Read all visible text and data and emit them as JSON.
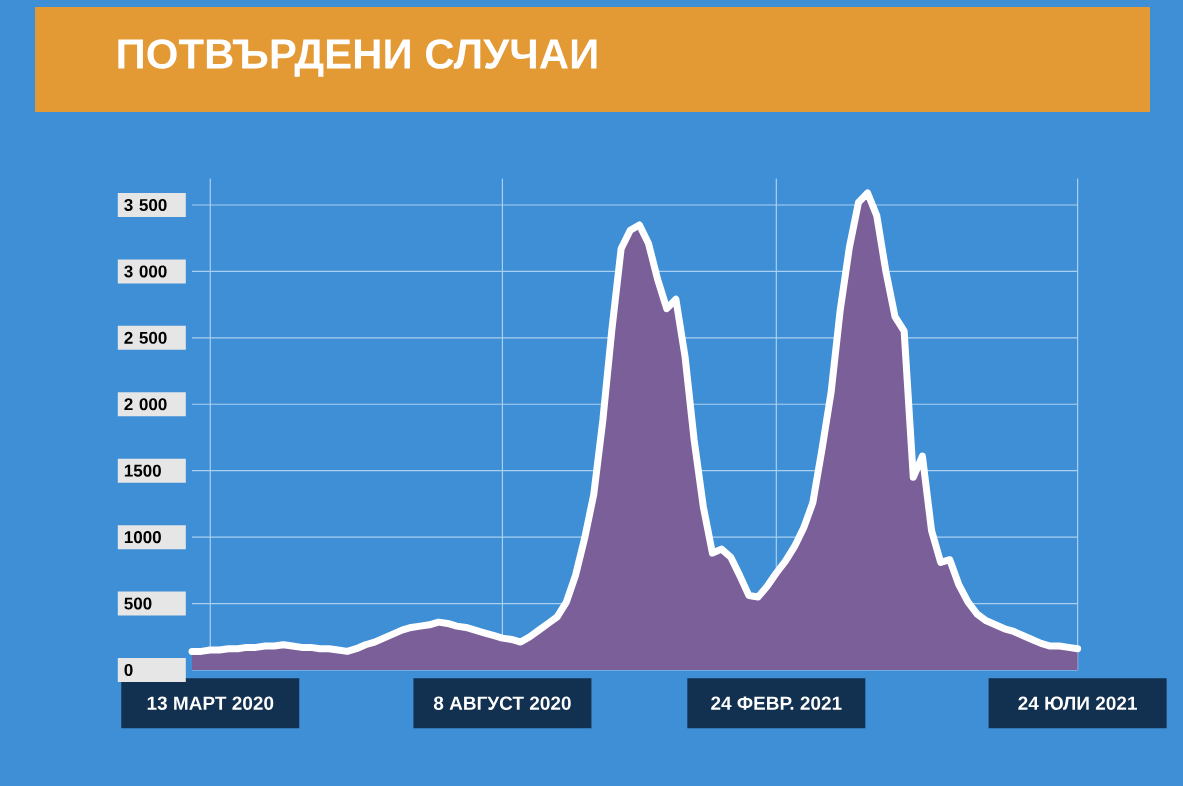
{
  "chart_data": {
    "type": "area",
    "title": "ПОТВЪРДЕНИ СЛУЧАИ",
    "categories": [
      null,
      null,
      "13 МАРТ 2020",
      null,
      null,
      null,
      null,
      null,
      null,
      null,
      null,
      null,
      null,
      null,
      null,
      null,
      null,
      null,
      null,
      null,
      null,
      null,
      null,
      null,
      null,
      null,
      null,
      null,
      null,
      null,
      null,
      null,
      null,
      null,
      "8 АВГУСТ 2020",
      null,
      null,
      null,
      null,
      null,
      null,
      null,
      null,
      null,
      null,
      null,
      null,
      null,
      null,
      null,
      null,
      null,
      null,
      null,
      null,
      null,
      null,
      null,
      null,
      null,
      null,
      null,
      null,
      null,
      "24 ФЕВР. 2021",
      null,
      null,
      null,
      null,
      null,
      null,
      null,
      null,
      null,
      null,
      null,
      null,
      null,
      null,
      null,
      null,
      null,
      null,
      null,
      null,
      null,
      null,
      null,
      null,
      null,
      null,
      null,
      null,
      null,
      null,
      null,
      null,
      "24 ЮЛИ 2021"
    ],
    "series": [
      {
        "color": "#7b5f99",
        "values": [
          140,
          140,
          150,
          150,
          160,
          160,
          170,
          170,
          180,
          180,
          190,
          180,
          170,
          170,
          160,
          160,
          150,
          140,
          160,
          190,
          210,
          240,
          270,
          300,
          320,
          330,
          340,
          360,
          350,
          330,
          320,
          300,
          280,
          260,
          240,
          230,
          210,
          250,
          300,
          350,
          400,
          510,
          710,
          990,
          1320,
          1880,
          2570,
          3170,
          3310,
          3350,
          3210,
          2940,
          2720,
          2790,
          2360,
          1730,
          1230,
          880,
          910,
          850,
          710,
          560,
          550,
          630,
          730,
          820,
          930,
          1070,
          1260,
          1660,
          2090,
          2710,
          3180,
          3520,
          3590,
          3420,
          3000,
          2660,
          2550,
          1450,
          1610,
          1050,
          810,
          830,
          640,
          510,
          420,
          370,
          340,
          310,
          290,
          260,
          230,
          200,
          180,
          180,
          170,
          160
        ]
      }
    ],
    "ylim": [
      0,
      3700
    ],
    "yticks": [
      0,
      500,
      1000,
      1500,
      {
        "value": 2000,
        "label": "2 000"
      },
      {
        "value": 2500,
        "label": "2 500"
      },
      {
        "value": 3000,
        "label": "3 000"
      },
      {
        "value": 3500,
        "label": "3 500"
      }
    ],
    "grid": true
  }
}
